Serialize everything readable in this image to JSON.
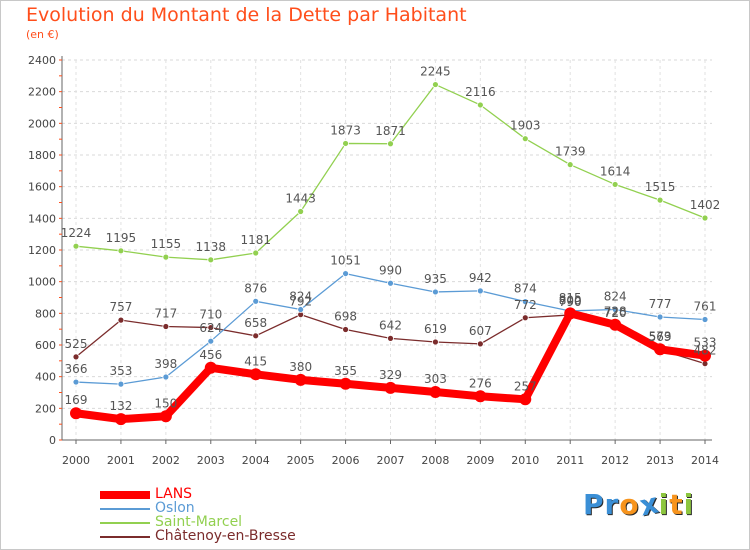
{
  "title": "Evolution du Montant de la Dette par Habitant",
  "subtitle": "(en €)",
  "logo": {
    "letters": [
      "P",
      "r",
      "o",
      "x",
      "i",
      "t",
      "i"
    ],
    "colors": [
      "#3a8fd6",
      "#3a8fd6",
      "#f7941d",
      "#3a8fd6",
      "#8dc63f",
      "#f7941d",
      "#8dc63f"
    ]
  },
  "chart_data": {
    "type": "line",
    "title": "Evolution du Montant de la Dette par Habitant",
    "ylabel": "(en €)",
    "xlabel": "",
    "x": [
      "2000",
      "2001",
      "2002",
      "2003",
      "2004",
      "2005",
      "2006",
      "2007",
      "2008",
      "2009",
      "2010",
      "2011",
      "2012",
      "2013",
      "2014"
    ],
    "ylim": [
      0,
      2400
    ],
    "yticks": [
      0,
      200,
      400,
      600,
      800,
      1000,
      1200,
      1400,
      1600,
      1800,
      2000,
      2200,
      2400
    ],
    "grid": true,
    "legend_position": "bottom-left",
    "series": [
      {
        "name": "LANS",
        "color": "#ff0000",
        "values": [
          169,
          132,
          150,
          456,
          415,
          380,
          355,
          329,
          303,
          276,
          257,
          800,
          728,
          573,
          533
        ]
      },
      {
        "name": "Oslon",
        "color": "#5b9bd5",
        "values": [
          366,
          353,
          398,
          624,
          876,
          824,
          1051,
          990,
          935,
          942,
          874,
          815,
          824,
          777,
          761
        ]
      },
      {
        "name": "Saint-Marcel",
        "color": "#92d050",
        "values": [
          1224,
          1195,
          1155,
          1138,
          1181,
          1443,
          1873,
          1871,
          2245,
          2116,
          1903,
          1739,
          1614,
          1515,
          1402
        ]
      },
      {
        "name": "Châtenoy-en-Bresse",
        "color": "#7b2c2c",
        "values": [
          525,
          757,
          717,
          710,
          658,
          792,
          698,
          642,
          619,
          607,
          772,
          790,
          720,
          569,
          482
        ]
      }
    ]
  }
}
